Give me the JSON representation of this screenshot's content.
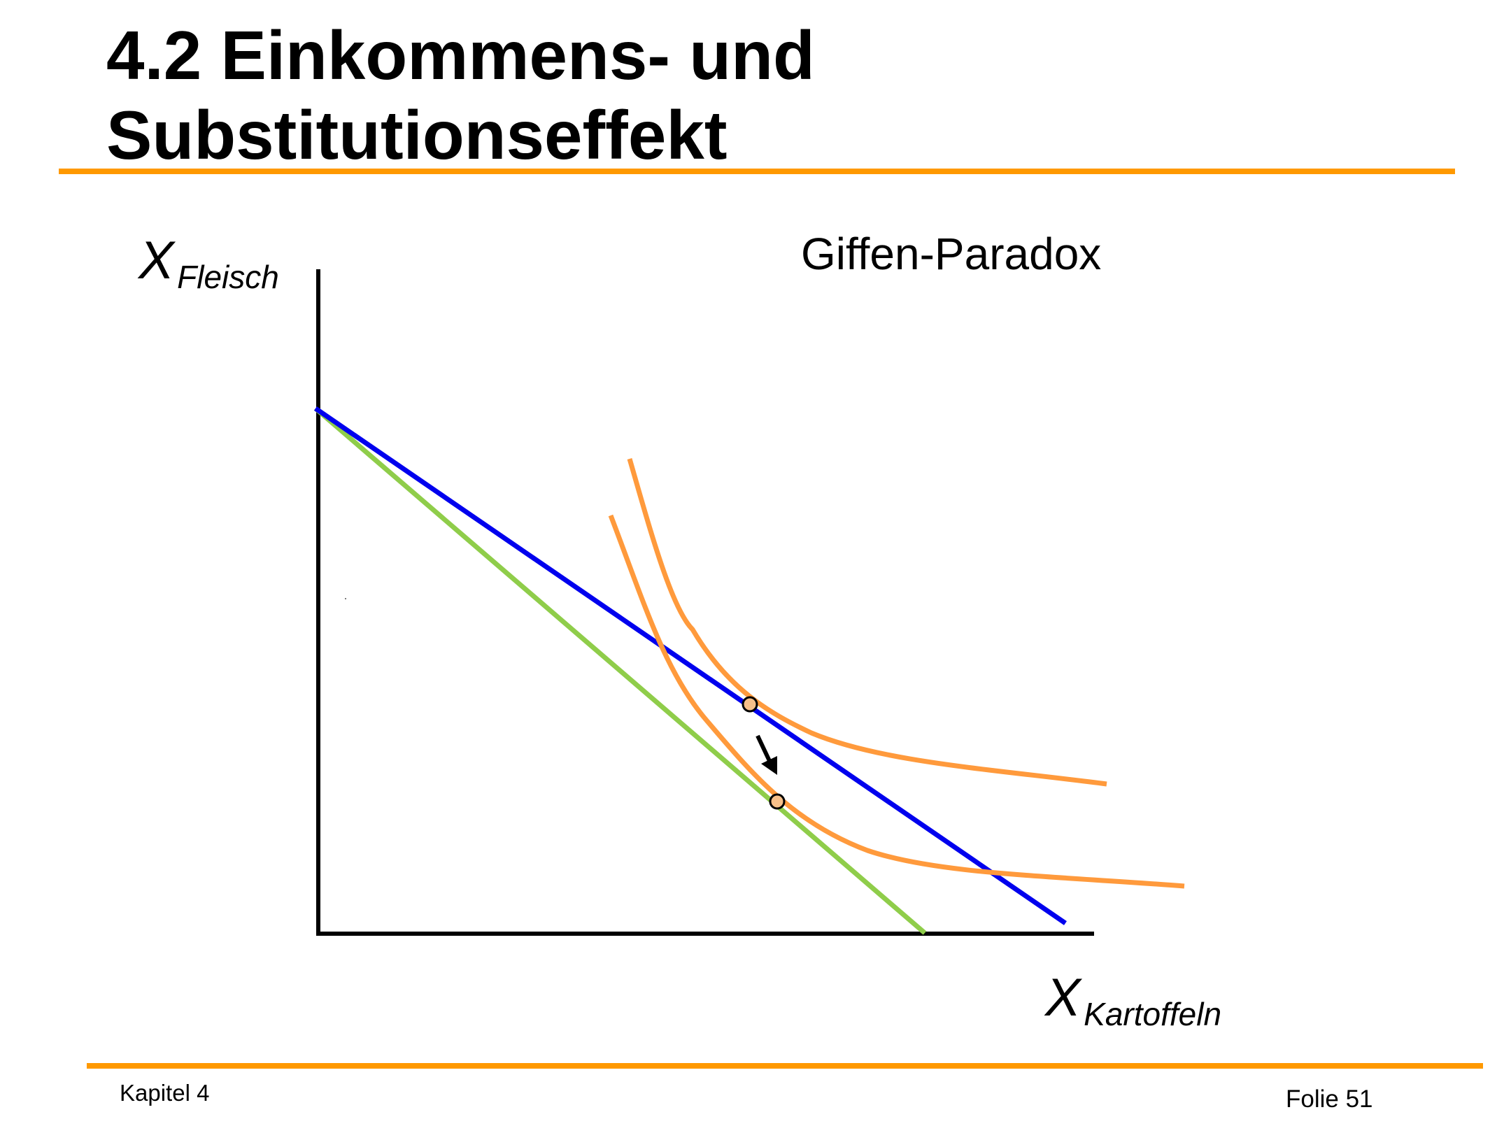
{
  "slide": {
    "title_line1": "4.2 Einkommens- und",
    "title_line2": "Substitutionseffekt"
  },
  "diagram": {
    "caption": "Giffen-Paradox",
    "y_axis": {
      "symbol": "X",
      "subscript": "Fleisch"
    },
    "x_axis": {
      "symbol": "X",
      "subscript": "Kartoffeln"
    },
    "colors": {
      "accent_rule": "#ff9900",
      "budget_line_original": "#0000ee",
      "budget_line_new": "#8fcd4a",
      "indifference_curves": "#ff9a3c",
      "equilibrium_point_fill": "#f7c08a",
      "axes": "#000000"
    },
    "lines": [
      {
        "name": "budget line (original)",
        "color_key": "budget_line_original"
      },
      {
        "name": "budget line (after price change)",
        "color_key": "budget_line_new"
      }
    ],
    "curves": [
      {
        "name": "indifference curve (higher)"
      },
      {
        "name": "indifference curve (lower)"
      }
    ],
    "points": [
      {
        "name": "initial optimum"
      },
      {
        "name": "new optimum"
      }
    ],
    "arrow": {
      "icon": "arrow-down-right-icon",
      "meaning": "shift from initial to new optimum"
    }
  },
  "footer": {
    "chapter": "Kapitel 4",
    "slide_number": "Folie 51"
  }
}
